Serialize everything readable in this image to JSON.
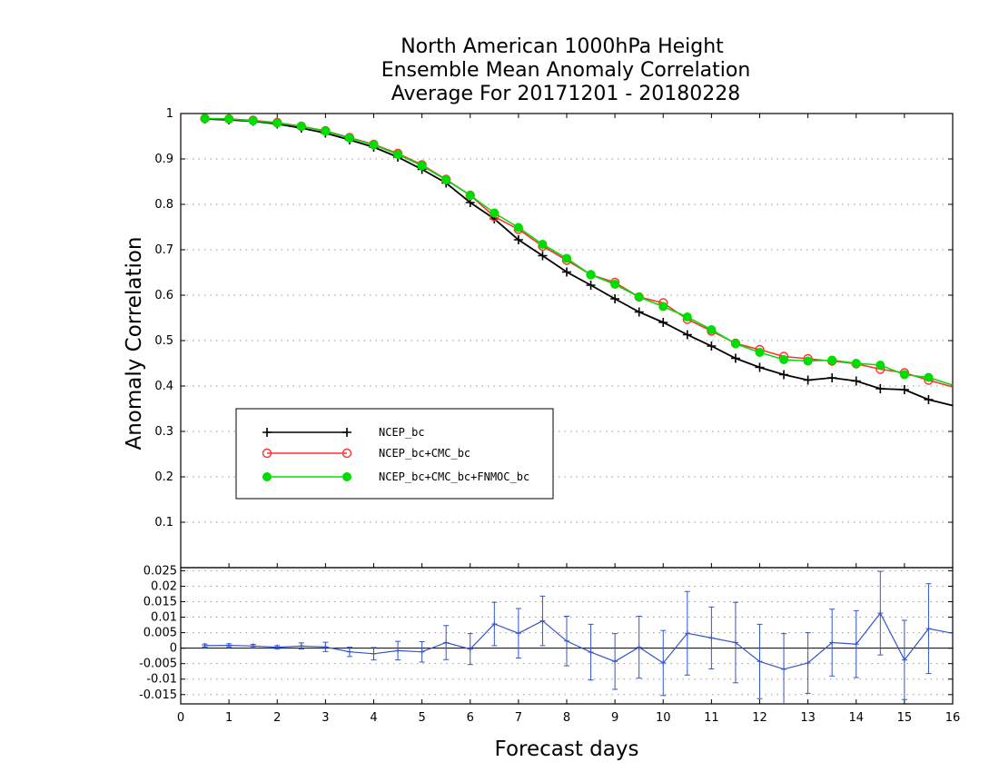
{
  "chart_data": {
    "type": "line",
    "title": [
      "North American 1000hPa Height",
      "Ensemble Mean Anomaly Correlation",
      "Average For 20171201 - 20180228"
    ],
    "xlabel": "Forecast days",
    "ylabel": "Anomaly Correlation",
    "xlim": [
      0,
      16
    ],
    "ylim": [
      0,
      1
    ],
    "x_ticks": [
      "0",
      "1",
      "2",
      "3",
      "4",
      "5",
      "6",
      "7",
      "8",
      "9",
      "10",
      "11",
      "12",
      "13",
      "14",
      "15",
      "16"
    ],
    "y_ticks": [
      "0.1",
      "0.2",
      "0.3",
      "0.4",
      "0.5",
      "0.6",
      "0.7",
      "0.8",
      "0.9",
      "1"
    ],
    "grid": "dotted-horizontal",
    "legend_position": "left",
    "x": [
      0.5,
      1,
      1.5,
      2,
      2.5,
      3,
      3.5,
      4,
      4.5,
      5,
      5.5,
      6,
      6.5,
      7,
      7.5,
      8,
      8.5,
      9,
      9.5,
      10,
      10.5,
      11,
      11.5,
      12,
      12.5,
      13,
      13.5,
      14,
      14.5,
      15,
      15.5,
      16
    ],
    "series": [
      {
        "name": "NCEP_bc",
        "color": "#000000",
        "marker": "plus",
        "values": [
          0.988,
          0.986,
          0.983,
          0.977,
          0.968,
          0.957,
          0.942,
          0.926,
          0.904,
          0.877,
          0.847,
          0.804,
          0.768,
          0.722,
          0.687,
          0.651,
          0.622,
          0.592,
          0.563,
          0.54,
          0.513,
          0.488,
          0.461,
          0.441,
          0.425,
          0.413,
          0.418,
          0.411,
          0.394,
          0.392,
          0.37,
          0.357
        ]
      },
      {
        "name": "NCEP_bc+CMC_bc",
        "color": "#ff3030",
        "marker": "open-circle",
        "values": [
          0.989,
          0.988,
          0.985,
          0.98,
          0.972,
          0.962,
          0.947,
          0.932,
          0.912,
          0.887,
          0.855,
          0.82,
          0.773,
          0.745,
          0.708,
          0.677,
          0.645,
          0.628,
          0.596,
          0.583,
          0.547,
          0.521,
          0.494,
          0.48,
          0.465,
          0.46,
          0.455,
          0.449,
          0.437,
          0.429,
          0.413,
          0.398
        ]
      },
      {
        "name": "NCEP_bc+CMC_bc+FNMOC_bc",
        "color": "#00dd00",
        "marker": "filled-circle",
        "values": [
          0.989,
          0.988,
          0.984,
          0.979,
          0.972,
          0.961,
          0.946,
          0.931,
          0.91,
          0.885,
          0.854,
          0.82,
          0.781,
          0.749,
          0.712,
          0.681,
          0.645,
          0.624,
          0.596,
          0.575,
          0.552,
          0.524,
          0.493,
          0.474,
          0.458,
          0.455,
          0.457,
          0.45,
          0.446,
          0.425,
          0.419,
          0.402
        ]
      }
    ],
    "difference_panel": {
      "ylim": [
        -0.018,
        0.026
      ],
      "y_ticks": [
        "-0.015",
        "-0.01",
        "-0.005",
        "0",
        "0.005",
        "0.01",
        "0.015",
        "0.02",
        "0.025"
      ],
      "color": "#3355cc",
      "values": [
        0.0008,
        0.0009,
        0.0007,
        0.0003,
        0.0007,
        0.0004,
        -0.0012,
        -0.0018,
        -0.0008,
        -0.0012,
        0.0018,
        -0.0003,
        0.0078,
        0.0048,
        0.0088,
        0.0023,
        -0.0013,
        -0.0043,
        0.0003,
        -0.0048,
        0.0048,
        0.0033,
        0.0018,
        -0.0043,
        -0.0068,
        -0.0048,
        0.0018,
        0.0013,
        0.0113,
        -0.0038,
        0.0063,
        0.0048
      ],
      "error_bars": [
        0.0005,
        0.0005,
        0.0005,
        0.0005,
        0.001,
        0.0015,
        0.0015,
        0.002,
        0.003,
        0.0033,
        0.0055,
        0.005,
        0.007,
        0.008,
        0.008,
        0.008,
        0.009,
        0.009,
        0.01,
        0.0105,
        0.0135,
        0.01,
        0.013,
        0.012,
        0.0115,
        0.0098,
        0.0108,
        0.0108,
        0.0135,
        0.0128,
        0.0145,
        0
      ]
    }
  }
}
